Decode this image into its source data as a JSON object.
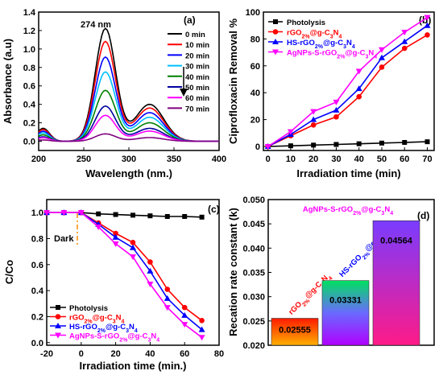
{
  "chart_data": [
    {
      "panel": "(a)",
      "type": "line",
      "xlabel": "Wavelength (nm.)",
      "ylabel": "Absorbance (a.u)",
      "xlim": [
        200,
        400
      ],
      "ylim": [
        -0.1,
        1.4
      ],
      "xticks": [
        200,
        250,
        300,
        350,
        400
      ],
      "yticks": [
        0.0,
        0.2,
        0.4,
        0.6,
        0.8,
        1.0,
        1.2,
        1.4
      ],
      "ytick_labels": [
        "0.0",
        "0.2",
        "0.4",
        "0.6",
        "0.8",
        "1.0",
        "1.2",
        "1.4"
      ],
      "peak_label": "274 nm",
      "legend_position": "top-right",
      "series": [
        {
          "name": "0 min",
          "color": "#000000",
          "peak": 1.22,
          "shoulder": 0.4,
          "base": 0.0
        },
        {
          "name": "10 min",
          "color": "#ff0000",
          "peak": 1.08,
          "shoulder": 0.36,
          "base": 0.0
        },
        {
          "name": "20 min",
          "color": "#0000ff",
          "peak": 0.91,
          "shoulder": 0.31,
          "base": 0.0
        },
        {
          "name": "30 min",
          "color": "#00c0ff",
          "peak": 0.75,
          "shoulder": 0.26,
          "base": 0.0
        },
        {
          "name": "40 min",
          "color": "#008000",
          "peak": 0.55,
          "shoulder": 0.2,
          "base": 0.0
        },
        {
          "name": "50 min",
          "color": "#0000a0",
          "peak": 0.38,
          "shoulder": 0.14,
          "base": 0.0
        },
        {
          "name": "60 min",
          "color": "#ff00ff",
          "peak": 0.28,
          "shoulder": 0.11,
          "base": 0.0
        },
        {
          "name": "70 min",
          "color": "#800080",
          "peak": 0.08,
          "shoulder": 0.04,
          "base": 0.0
        }
      ]
    },
    {
      "panel": "(b)",
      "type": "line",
      "xlabel": "Irradiation time (min)",
      "ylabel": "Ciprofloxacin Removal %",
      "xlim": [
        0,
        70
      ],
      "ylim": [
        0,
        100
      ],
      "xticks": [
        0,
        10,
        20,
        30,
        40,
        50,
        60,
        70
      ],
      "yticks": [
        0,
        20,
        40,
        60,
        80,
        100
      ],
      "legend_position": "top-left",
      "x": [
        0,
        10,
        20,
        30,
        40,
        50,
        60,
        70
      ],
      "series": [
        {
          "name": "Photolysis",
          "color": "#000000",
          "marker": "square",
          "values": [
            0,
            0.5,
            1,
            1.5,
            2,
            2.5,
            3,
            3.5
          ]
        },
        {
          "name": "rGO2%@g-C3N4",
          "color": "#ff0000",
          "marker": "circle",
          "values": [
            0,
            8,
            16,
            22,
            37,
            59,
            73,
            83
          ]
        },
        {
          "name": "HS-rGO2%@g-C3N4",
          "color": "#0000ff",
          "marker": "triangle",
          "values": [
            0,
            9,
            20,
            27,
            43,
            66,
            78,
            90
          ]
        },
        {
          "name": "AgNPs-S-rGO2%@g-C3N4",
          "color": "#ff00ff",
          "marker": "triangle-down",
          "values": [
            0,
            11,
            26,
            33,
            56,
            72,
            85,
            96
          ]
        }
      ]
    },
    {
      "panel": "(c)",
      "type": "line",
      "xlabel": "Irradiation time (min.)",
      "ylabel": "C/Co",
      "xlim": [
        -20,
        80
      ],
      "ylim": [
        0,
        1.05
      ],
      "xticks": [
        -20,
        0,
        20,
        40,
        60,
        80
      ],
      "yticks": [
        0.0,
        0.2,
        0.4,
        0.6,
        0.8,
        1.0
      ],
      "ytick_labels": [
        "0.0",
        "0.2",
        "0.4",
        "0.6",
        "0.8",
        "1.0"
      ],
      "dark_label": "Dark",
      "legend_position": "bottom-left",
      "x": [
        -20,
        -10,
        0,
        10,
        20,
        30,
        40,
        50,
        60,
        70
      ],
      "series": [
        {
          "name": "Photolysis",
          "color": "#000000",
          "marker": "square",
          "values": [
            1.0,
            1.0,
            1.0,
            0.99,
            0.985,
            0.98,
            0.975,
            0.97,
            0.97,
            0.965
          ]
        },
        {
          "name": "rGO2%@g-C3N4",
          "color": "#ff0000",
          "marker": "circle",
          "values": [
            1.0,
            1.0,
            1.0,
            0.92,
            0.84,
            0.77,
            0.62,
            0.41,
            0.27,
            0.17
          ]
        },
        {
          "name": "HS-rGO2%@g-C3N4",
          "color": "#0000ff",
          "marker": "triangle",
          "values": [
            1.0,
            1.0,
            1.0,
            0.91,
            0.81,
            0.73,
            0.55,
            0.34,
            0.21,
            0.1
          ]
        },
        {
          "name": "AgNPs-S-rGO2%@g-C3N4",
          "color": "#ff00ff",
          "marker": "triangle-down",
          "values": [
            1.0,
            1.0,
            1.0,
            0.89,
            0.76,
            0.66,
            0.45,
            0.27,
            0.14,
            0.04
          ]
        }
      ]
    },
    {
      "panel": "(d)",
      "type": "bar",
      "ylabel": "Recation rate constant (k)",
      "ylim": [
        0.02,
        0.05
      ],
      "yticks": [
        0.02,
        0.025,
        0.03,
        0.035,
        0.04,
        0.045,
        0.05
      ],
      "ytick_labels": [
        "0.020",
        "0.025",
        "0.030",
        "0.035",
        "0.040",
        "0.045",
        "0.050"
      ],
      "categories": [
        "rGO2%@g-C3N4",
        "HS-rGO2%@g-C3N4",
        "AgNPs-S-rGO2%@g-C3N4"
      ],
      "values": [
        0.02555,
        0.03331,
        0.04564
      ],
      "value_labels": [
        "0.02555",
        "0.03331",
        "0.04564"
      ],
      "label_colors": [
        "#ff0000",
        "#0000ff",
        "#ff00ff"
      ]
    }
  ]
}
